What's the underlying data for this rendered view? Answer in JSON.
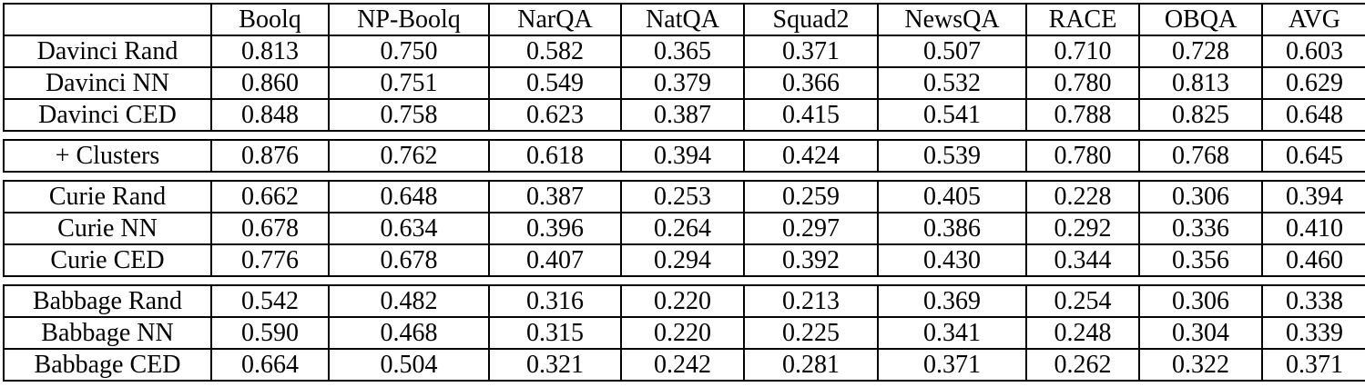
{
  "table": {
    "header": [
      "",
      "Boolq",
      "NP-Boolq",
      "NarQA",
      "NatQA",
      "Squad2",
      "NewsQA",
      "RACE",
      "OBQA",
      "AVG"
    ],
    "groups": [
      {
        "rows": [
          {
            "label": "Davinci Rand",
            "values": [
              "0.813",
              "0.750",
              "0.582",
              "0.365",
              "0.371",
              "0.507",
              "0.710",
              "0.728",
              "0.603"
            ],
            "bold": []
          },
          {
            "label": "Davinci NN",
            "values": [
              "0.860",
              "0.751",
              "0.549",
              "0.379",
              "0.366",
              "0.532",
              "0.780",
              "0.813",
              "0.629"
            ],
            "bold": [
              0
            ]
          },
          {
            "label": "Davinci CED",
            "values": [
              "0.848",
              "0.758",
              "0.623",
              "0.387",
              "0.415",
              "0.541",
              "0.788",
              "0.825",
              "0.648"
            ],
            "bold": [
              1,
              2,
              3,
              4,
              5,
              6,
              7,
              8
            ]
          }
        ]
      },
      {
        "rows": [
          {
            "label": "+ Clusters",
            "values": [
              "0.876",
              "0.762",
              "0.618",
              "0.394",
              "0.424",
              "0.539",
              "0.780",
              "0.768",
              "0.645"
            ],
            "bold": []
          }
        ]
      },
      {
        "rows": [
          {
            "label": "Curie Rand",
            "values": [
              "0.662",
              "0.648",
              "0.387",
              "0.253",
              "0.259",
              "0.405",
              "0.228",
              "0.306",
              "0.394"
            ],
            "bold": []
          },
          {
            "label": "Curie NN",
            "values": [
              "0.678",
              "0.634",
              "0.396",
              "0.264",
              "0.297",
              "0.386",
              "0.292",
              "0.336",
              "0.410"
            ],
            "bold": []
          },
          {
            "label": "Curie CED",
            "values": [
              "0.776",
              "0.678",
              "0.407",
              "0.294",
              "0.392",
              "0.430",
              "0.344",
              "0.356",
              "0.460"
            ],
            "bold": [
              8
            ]
          }
        ]
      },
      {
        "rows": [
          {
            "label": "Babbage Rand",
            "values": [
              "0.542",
              "0.482",
              "0.316",
              "0.220",
              "0.213",
              "0.369",
              "0.254",
              "0.306",
              "0.338"
            ],
            "bold": []
          },
          {
            "label": "Babbage NN",
            "values": [
              "0.590",
              "0.468",
              "0.315",
              "0.220",
              "0.225",
              "0.341",
              "0.248",
              "0.304",
              "0.339"
            ],
            "bold": []
          },
          {
            "label": "Babbage CED",
            "values": [
              "0.664",
              "0.504",
              "0.321",
              "0.242",
              "0.281",
              "0.371",
              "0.262",
              "0.322",
              "0.371"
            ],
            "bold": [
              8
            ]
          }
        ]
      }
    ],
    "text_color": "#000000",
    "border_color": "#000000",
    "background_color": "#ffffff"
  }
}
